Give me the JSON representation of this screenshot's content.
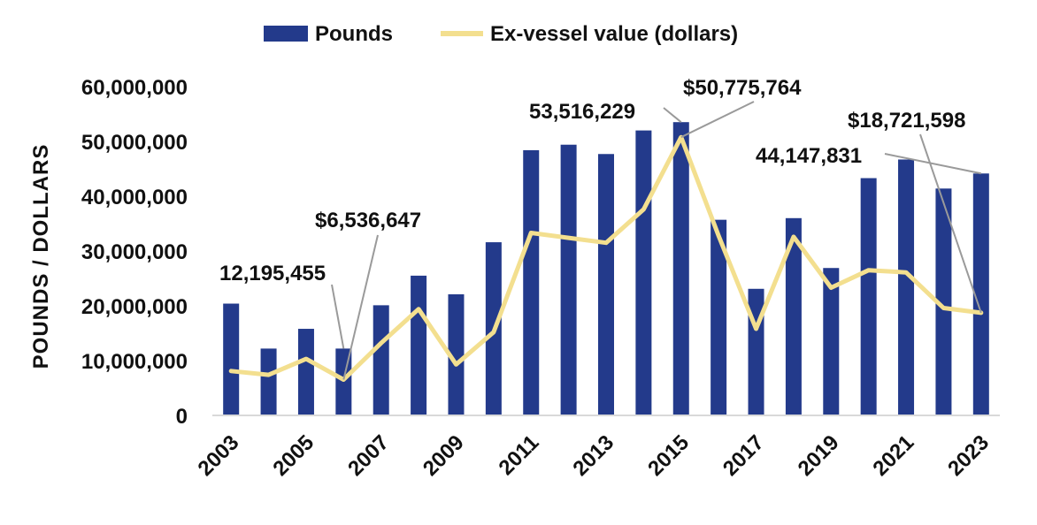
{
  "colors": {
    "bars": "#233a8b",
    "line": "#f3df8f",
    "axis": "#d9d9d9",
    "leader": "#9a9a9a",
    "text": "#111111"
  },
  "chart_data": {
    "type": "bar+line",
    "title": "",
    "xlabel": "",
    "ylabel": "POUNDS / DOLLARS",
    "ylim": [
      0,
      60000000
    ],
    "yticks": [
      0,
      10000000,
      20000000,
      30000000,
      40000000,
      50000000,
      60000000
    ],
    "ytick_labels": [
      "0",
      "10,000,000",
      "20,000,000",
      "30,000,000",
      "40,000,000",
      "50,000,000",
      "60,000,000"
    ],
    "categories": [
      2003,
      2004,
      2005,
      2006,
      2007,
      2008,
      2009,
      2010,
      2011,
      2012,
      2013,
      2014,
      2015,
      2016,
      2017,
      2018,
      2019,
      2020,
      2021,
      2022,
      2023
    ],
    "xtick_labels": [
      "2003",
      "2005",
      "2007",
      "2009",
      "2011",
      "2013",
      "2015",
      "2017",
      "2019",
      "2021",
      "2023"
    ],
    "grid": false,
    "legend_position": "top-center",
    "series": [
      {
        "name": "Pounds",
        "kind": "bar",
        "values": [
          20400000,
          12195455,
          15800000,
          12195455,
          20100000,
          25500000,
          22100000,
          31600000,
          48400000,
          49400000,
          47700000,
          52000000,
          53516229,
          35700000,
          23100000,
          36000000,
          26900000,
          43300000,
          46700000,
          41400000,
          44147831
        ]
      },
      {
        "name": "Ex-vessel value (dollars)",
        "kind": "line",
        "values": [
          8100000,
          7400000,
          10300000,
          6536647,
          13200000,
          19400000,
          9300000,
          15200000,
          33300000,
          32400000,
          31500000,
          37600000,
          50775764,
          32800000,
          15800000,
          32600000,
          23300000,
          26500000,
          26100000,
          19600000,
          18721598
        ]
      }
    ],
    "annotations": [
      {
        "text": "12,195,455",
        "year": 2006,
        "value": 12195455,
        "series": "Pounds"
      },
      {
        "text": "$6,536,647",
        "year": 2006,
        "value": 6536647,
        "series": "Ex-vessel value (dollars)"
      },
      {
        "text": "53,516,229",
        "year": 2015,
        "value": 53516229,
        "series": "Pounds"
      },
      {
        "text": "$50,775,764",
        "year": 2015,
        "value": 50775764,
        "series": "Ex-vessel value (dollars)"
      },
      {
        "text": "44,147,831",
        "year": 2023,
        "value": 44147831,
        "series": "Pounds"
      },
      {
        "text": "$18,721,598",
        "year": 2023,
        "value": 18721598,
        "series": "Ex-vessel value (dollars)"
      }
    ]
  }
}
